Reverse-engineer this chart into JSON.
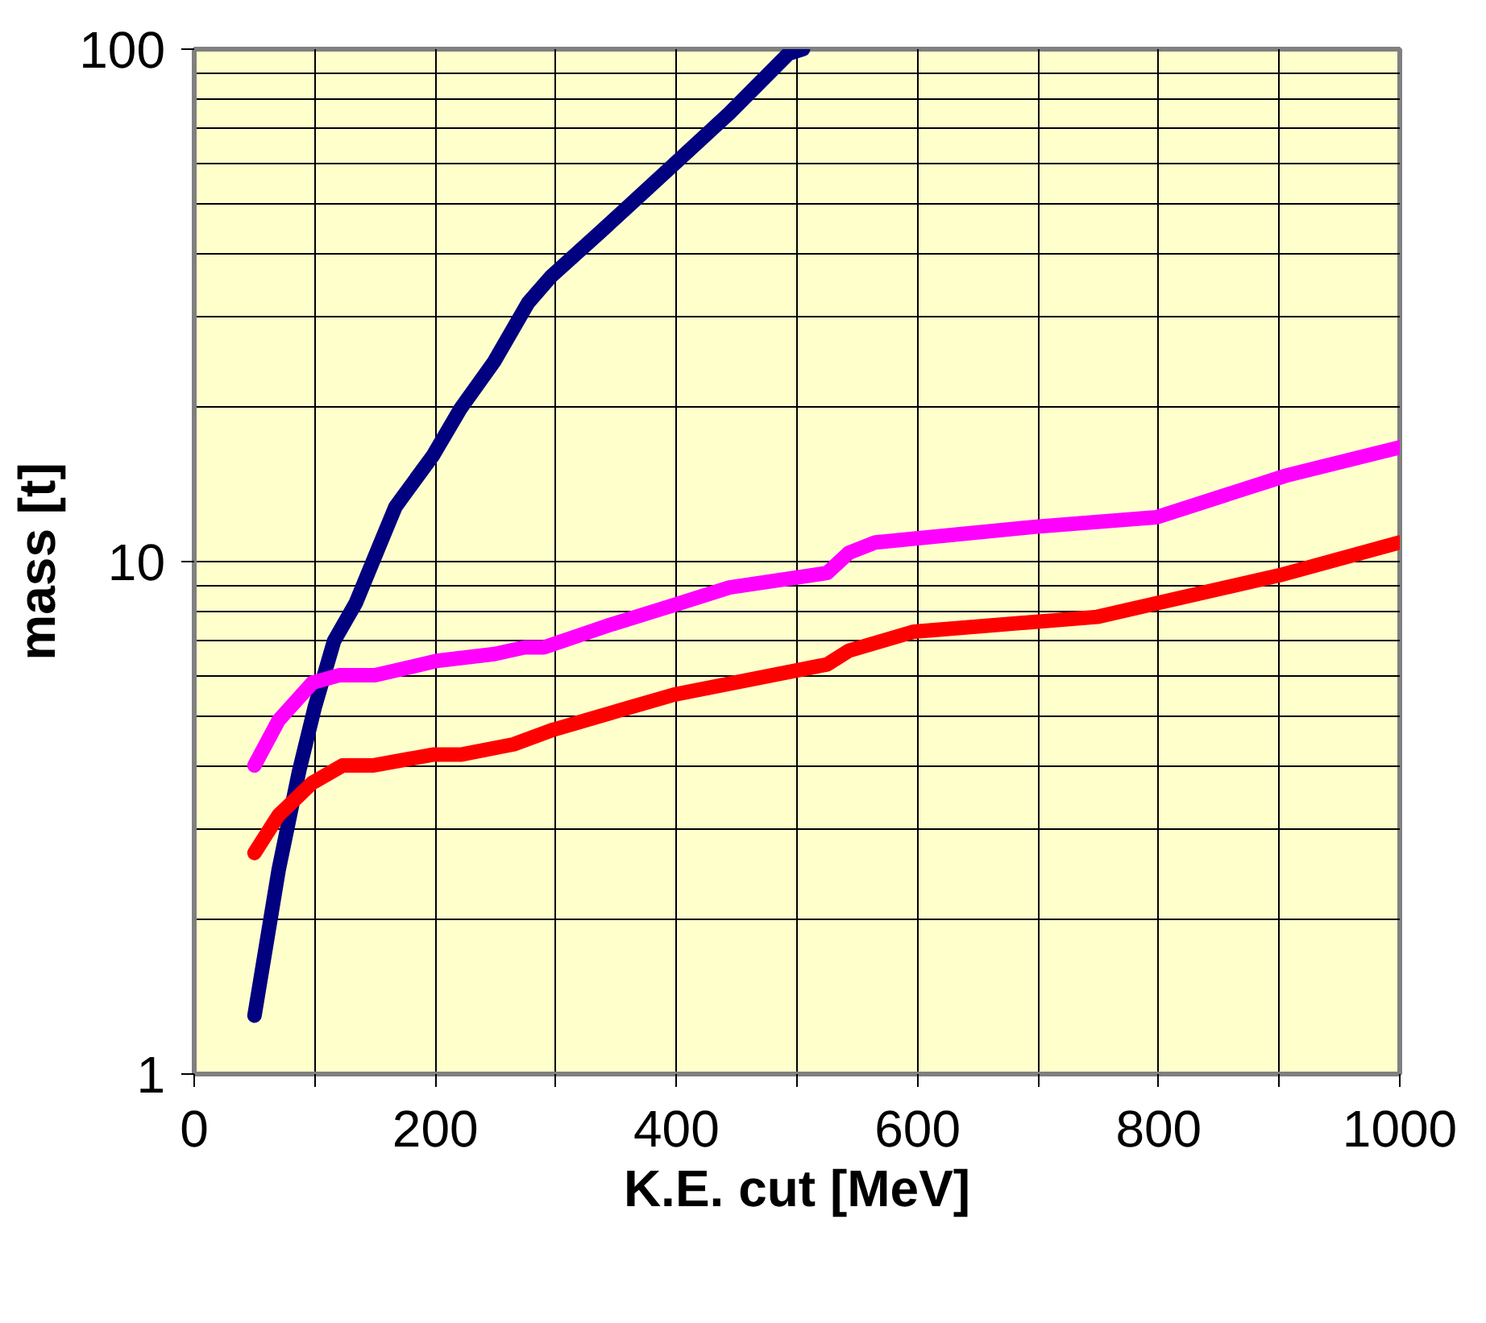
{
  "chart_data": {
    "type": "line",
    "xlabel": "K.E. cut [MeV]",
    "ylabel": "mass [t]",
    "log": "y",
    "grid": true,
    "marker": "none",
    "line_style": "solid",
    "xlim": [
      0,
      1000
    ],
    "xticks": [
      0,
      {
        "value": 100,
        "label": null
      },
      200,
      {
        "value": 300,
        "label": null
      },
      400,
      {
        "value": 500,
        "label": null
      },
      600,
      {
        "value": 700,
        "label": null
      },
      800,
      {
        "value": 900,
        "label": null
      },
      1000
    ],
    "ylim": [
      1,
      100
    ],
    "yticks": [
      1,
      10,
      100
    ],
    "series": [
      {
        "color": "#000080",
        "x": [
          50,
          70,
          87,
          100,
          116,
          134,
          154,
          167,
          198,
          221,
          249,
          277,
          296,
          337,
          396,
          444,
          493,
          505
        ],
        "values": [
          1.3,
          2.5,
          3.9,
          5.2,
          7.0,
          8.3,
          10.8,
          12.8,
          16.1,
          19.9,
          24.6,
          32,
          36,
          44,
          59,
          75,
          98,
          100
        ]
      },
      {
        "color": "#ff00ff",
        "x": [
          50,
          70,
          98,
          120,
          150,
          201,
          249,
          274,
          290,
          343,
          396,
          444,
          525,
          543,
          565,
          699,
          798,
          905,
          1000
        ],
        "values": [
          4.0,
          4.9,
          5.8,
          6.0,
          6.0,
          6.4,
          6.6,
          6.8,
          6.8,
          7.5,
          8.2,
          8.9,
          9.5,
          10.4,
          10.9,
          11.7,
          12.2,
          14.7,
          16.7
        ]
      },
      {
        "color": "#ff0000",
        "x": [
          50,
          70,
          98,
          123,
          148,
          198,
          221,
          265,
          298,
          398,
          525,
          543,
          597,
          749,
          900,
          1000
        ],
        "values": [
          2.7,
          3.2,
          3.7,
          4.0,
          4.0,
          4.2,
          4.2,
          4.4,
          4.7,
          5.5,
          6.3,
          6.7,
          7.3,
          7.8,
          9.4,
          10.9
        ]
      }
    ]
  }
}
